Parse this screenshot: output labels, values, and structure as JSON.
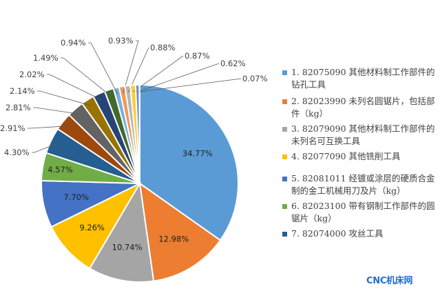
{
  "chart_data": {
    "type": "pie",
    "start_angle_deg": 0,
    "direction": "clockwise",
    "slices": [
      {
        "label": "1. 82075090 其他材料制工作部件的钻孔工具",
        "value": 34.77,
        "display": "34.77%",
        "color": "#5b9bd5",
        "in_legend": true
      },
      {
        "label": "2. 82023990 未列名圆锯片，包括部件（kg）",
        "value": 12.98,
        "display": "12.98%",
        "color": "#ed7d31",
        "in_legend": true
      },
      {
        "label": "3. 82079090 其他材料制工作部件的未列名可互换工具",
        "value": 10.74,
        "display": "10.74%",
        "color": "#a5a5a5",
        "in_legend": true
      },
      {
        "label": "4. 82077090 其他铣削工具",
        "value": 9.26,
        "display": "9.26%",
        "color": "#ffc000",
        "in_legend": true
      },
      {
        "label": "5. 82081011 经镀或涂层的硬质合金制的金工机械用刀及片（kg）",
        "value": 7.7,
        "display": "7.70%",
        "color": "#4472c4",
        "in_legend": true
      },
      {
        "label": "6. 82023100 带有钢制工作部件的圆锯片（kg）",
        "value": 4.57,
        "display": "4.57%",
        "color": "#70ad47",
        "in_legend": true
      },
      {
        "label": "7. 82074000 攻丝工具",
        "value": 4.3,
        "display": "4.30%",
        "color": "#255e91",
        "in_legend": true
      },
      {
        "label": "",
        "value": 2.91,
        "display": "2.91%",
        "color": "#9e480e",
        "in_legend": false
      },
      {
        "label": "",
        "value": 2.81,
        "display": "2.81%",
        "color": "#636363",
        "in_legend": false
      },
      {
        "label": "",
        "value": 2.14,
        "display": "2.14%",
        "color": "#997300",
        "in_legend": false
      },
      {
        "label": "",
        "value": 2.02,
        "display": "2.02%",
        "color": "#264478",
        "in_legend": false
      },
      {
        "label": "",
        "value": 1.49,
        "display": "1.49%",
        "color": "#43682b",
        "in_legend": false
      },
      {
        "label": "",
        "value": 0.94,
        "display": "0.94%",
        "color": "#7cafdd",
        "in_legend": false
      },
      {
        "label": "",
        "value": 0.93,
        "display": "0.93%",
        "color": "#f1975a",
        "in_legend": false
      },
      {
        "label": "",
        "value": 0.88,
        "display": "0.88%",
        "color": "#b7b7b7",
        "in_legend": false
      },
      {
        "label": "",
        "value": 0.87,
        "display": "0.87%",
        "color": "#ffcd33",
        "in_legend": false
      },
      {
        "label": "",
        "value": 0.62,
        "display": "0.62%",
        "color": "#698ed0",
        "in_legend": false
      },
      {
        "label": "",
        "value": 0.07,
        "display": "0.07%",
        "color": "#8cc168",
        "in_legend": false
      }
    ],
    "legend_position": "right"
  },
  "watermark": "CNC机床网"
}
